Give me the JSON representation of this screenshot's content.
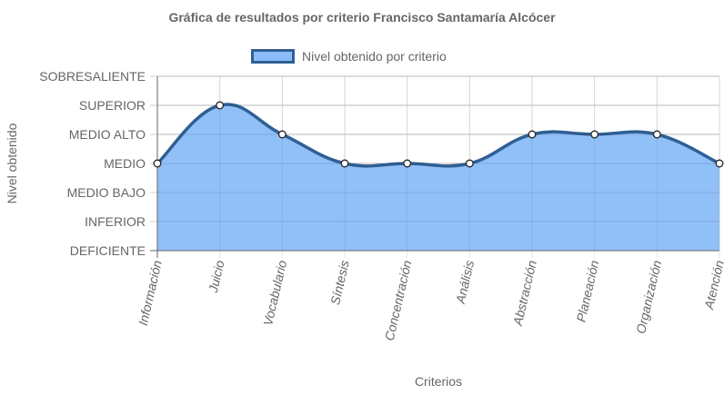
{
  "chart_data": {
    "type": "area",
    "title": "Gráfica de resultados por criterio Francisco Santamaría Alcócer",
    "xlabel": "Criterios",
    "ylabel": "Nivel obtenido",
    "y_levels": [
      "DEFICIENTE",
      "INFERIOR",
      "MEDIO BAJO",
      "MEDIO",
      "MEDIO ALTO",
      "SUPERIOR",
      "SOBRESALIENTE"
    ],
    "ylim": [
      0,
      6
    ],
    "categories": [
      "Información",
      "Juicio",
      "Vocabulario",
      "Síntesis",
      "Concentración",
      "Análisis",
      "Abstracción",
      "Planeación",
      "Organización",
      "Atención"
    ],
    "series": [
      {
        "name": "Nivel obtenido por criterio",
        "values": [
          3,
          5,
          4,
          3,
          3,
          3,
          4,
          4,
          4,
          3
        ]
      }
    ],
    "legend_position": "top-center",
    "grid": true,
    "colors": {
      "fill": "#8bbcf8",
      "line": "#2f5f94",
      "point_fill": "#ffffff",
      "point_stroke": "#222222",
      "grid": "#e0e0e0",
      "axis": "#666666"
    }
  }
}
